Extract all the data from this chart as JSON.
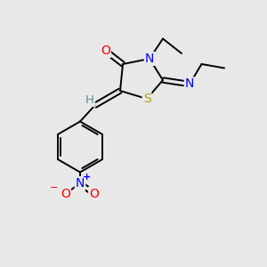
{
  "bg_color": "#e8e8e8",
  "atom_colors": {
    "C": "#000000",
    "N": "#0000ff",
    "O": "#ff0000",
    "S": "#b8a000",
    "H": "#5f9090"
  },
  "bond_color": "#000000",
  "figsize": [
    3.0,
    3.0
  ],
  "dpi": 100,
  "lw": 1.4,
  "fs": 9.5
}
